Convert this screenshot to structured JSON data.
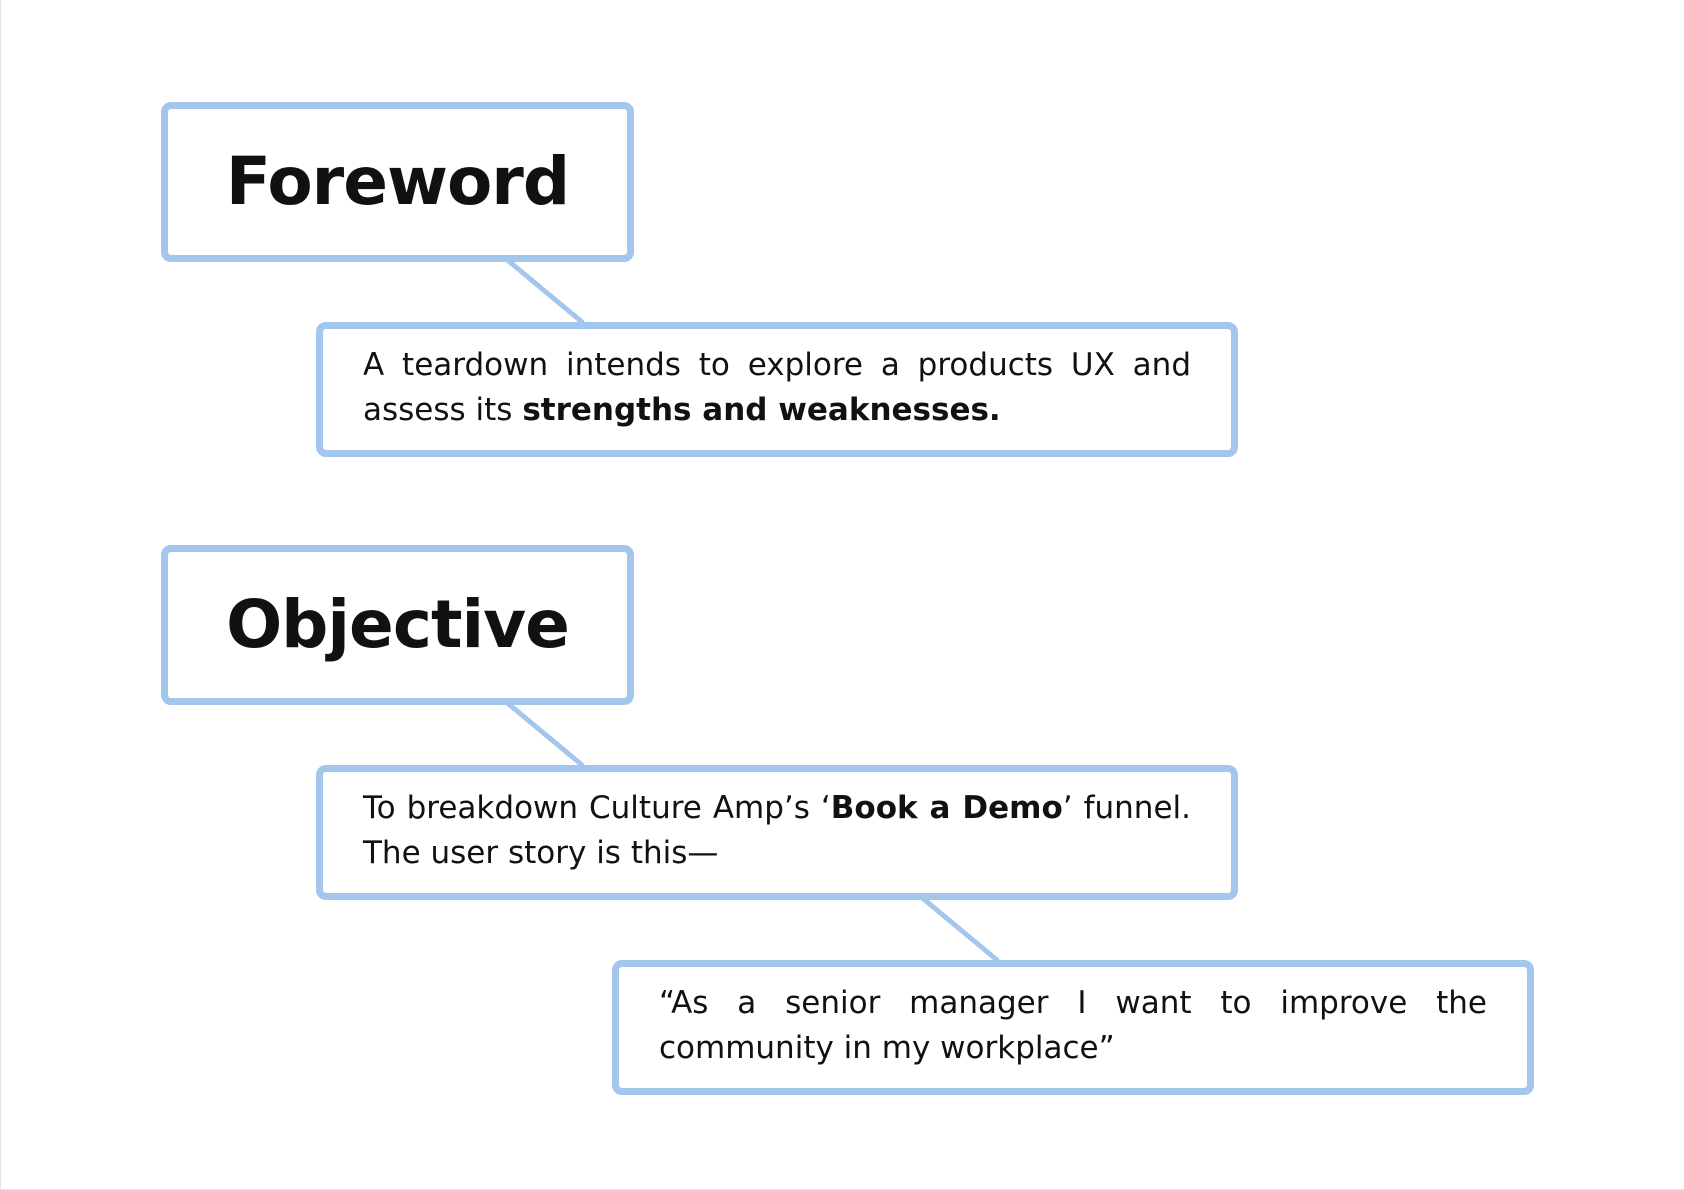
{
  "sections": {
    "foreword": {
      "title": "Foreword",
      "body": {
        "part1": "A teardown intends to explore a products UX and assess its ",
        "emphasis": "strengths and weaknesses."
      }
    },
    "objective": {
      "title": "Objective",
      "body": {
        "part1": "To breakdown Culture Amp’s ‘",
        "emphasis": "Book a Demo",
        "part2": "’ funnel. The user story is this—"
      },
      "user_story": "“As a senior manager I want to improve the community in my workplace”"
    }
  },
  "colors": {
    "box_border": "#a3c6ed",
    "text": "#111111",
    "background": "#ffffff"
  }
}
